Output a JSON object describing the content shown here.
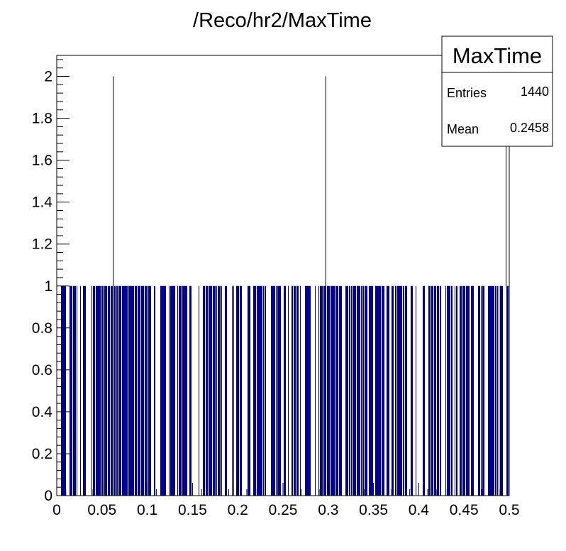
{
  "chart_data": {
    "type": "bar",
    "title": "/Reco/hr2/MaxTime",
    "xlabel": "",
    "ylabel": "",
    "xlim": [
      0,
      0.5
    ],
    "ylim": [
      0,
      2.1
    ],
    "bins": 1440,
    "fill_color": "#000099",
    "x_ticks": [
      "0",
      "0.05",
      "0.1",
      "0.15",
      "0.2",
      "0.25",
      "0.3",
      "0.35",
      "0.4",
      "0.45",
      "0.5"
    ],
    "y_ticks": [
      "0",
      "0.2",
      "0.4",
      "0.6",
      "0.8",
      "1",
      "1.2",
      "1.4",
      "1.6",
      "1.8",
      "2"
    ],
    "spikes": [
      {
        "x": 0.0625,
        "value": 2
      },
      {
        "x": 0.2972,
        "value": 2
      },
      {
        "x": 0.4965,
        "value": 2
      }
    ],
    "baseline_value": 1,
    "stats": {
      "name": "MaxTime",
      "entries_label": "Entries",
      "entries": "1440",
      "mean_label": "Mean",
      "mean": "0.2458"
    }
  }
}
